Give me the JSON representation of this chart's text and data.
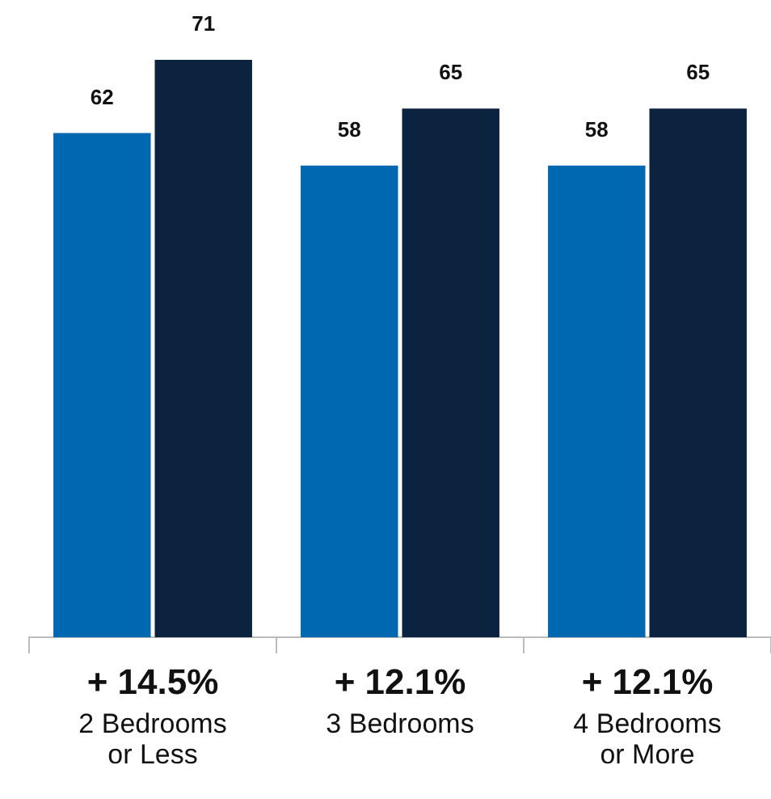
{
  "chart_data": {
    "type": "bar",
    "categories": [
      "2 Bedrooms or Less",
      "3 Bedrooms",
      "4 Bedrooms or More"
    ],
    "series": [
      {
        "color": "#0067b1",
        "values": [
          62,
          58,
          58
        ]
      },
      {
        "color": "#0c2340",
        "values": [
          71,
          65,
          65
        ]
      }
    ],
    "data_labels": true,
    "grid": false,
    "legend": false,
    "tick_labels": "x",
    "annotations": [
      "+ 14.5%",
      "+ 12.1%",
      "+ 12.1%"
    ]
  }
}
